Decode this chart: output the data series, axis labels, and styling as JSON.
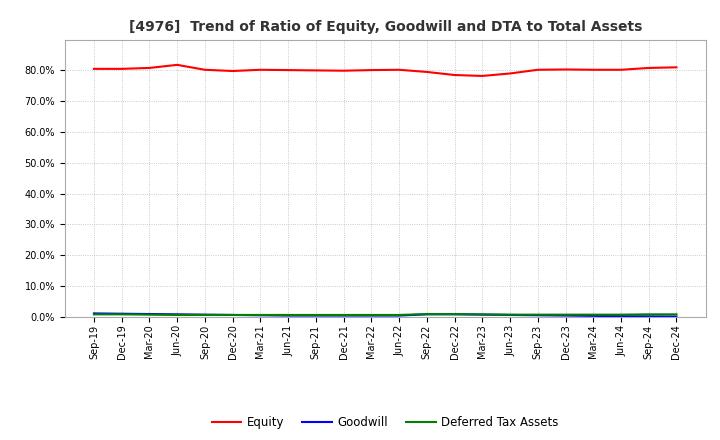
{
  "title": "[4976]  Trend of Ratio of Equity, Goodwill and DTA to Total Assets",
  "x_labels": [
    "Sep-19",
    "Dec-19",
    "Mar-20",
    "Jun-20",
    "Sep-20",
    "Dec-20",
    "Mar-21",
    "Jun-21",
    "Sep-21",
    "Dec-21",
    "Mar-22",
    "Jun-22",
    "Sep-22",
    "Dec-22",
    "Mar-23",
    "Jun-23",
    "Sep-23",
    "Dec-23",
    "Mar-24",
    "Jun-24",
    "Sep-24",
    "Dec-24"
  ],
  "equity": [
    80.5,
    80.5,
    80.8,
    81.8,
    80.2,
    79.8,
    80.2,
    80.1,
    80.0,
    79.9,
    80.1,
    80.2,
    79.5,
    78.5,
    78.2,
    79.0,
    80.2,
    80.3,
    80.2,
    80.2,
    80.8,
    81.0
  ],
  "goodwill": [
    1.1,
    1.0,
    0.9,
    0.8,
    0.7,
    0.6,
    0.5,
    0.4,
    0.4,
    0.4,
    0.4,
    0.4,
    0.8,
    0.8,
    0.7,
    0.6,
    0.5,
    0.4,
    0.3,
    0.2,
    0.15,
    0.1
  ],
  "dta": [
    0.8,
    0.8,
    0.7,
    0.6,
    0.6,
    0.6,
    0.6,
    0.6,
    0.6,
    0.6,
    0.6,
    0.6,
    0.9,
    0.9,
    0.8,
    0.7,
    0.7,
    0.7,
    0.7,
    0.7,
    0.8,
    0.8
  ],
  "equity_color": "#FF0000",
  "goodwill_color": "#0000FF",
  "dta_color": "#008000",
  "ylim": [
    0,
    90
  ],
  "yticks": [
    0.0,
    10.0,
    20.0,
    30.0,
    40.0,
    50.0,
    60.0,
    70.0,
    80.0
  ],
  "background_color": "#FFFFFF",
  "plot_bg_color": "#FFFFFF",
  "grid_color": "#BBBBBB",
  "legend_labels": [
    "Equity",
    "Goodwill",
    "Deferred Tax Assets"
  ],
  "title_fontsize": 10,
  "tick_fontsize": 7,
  "legend_fontsize": 8.5
}
